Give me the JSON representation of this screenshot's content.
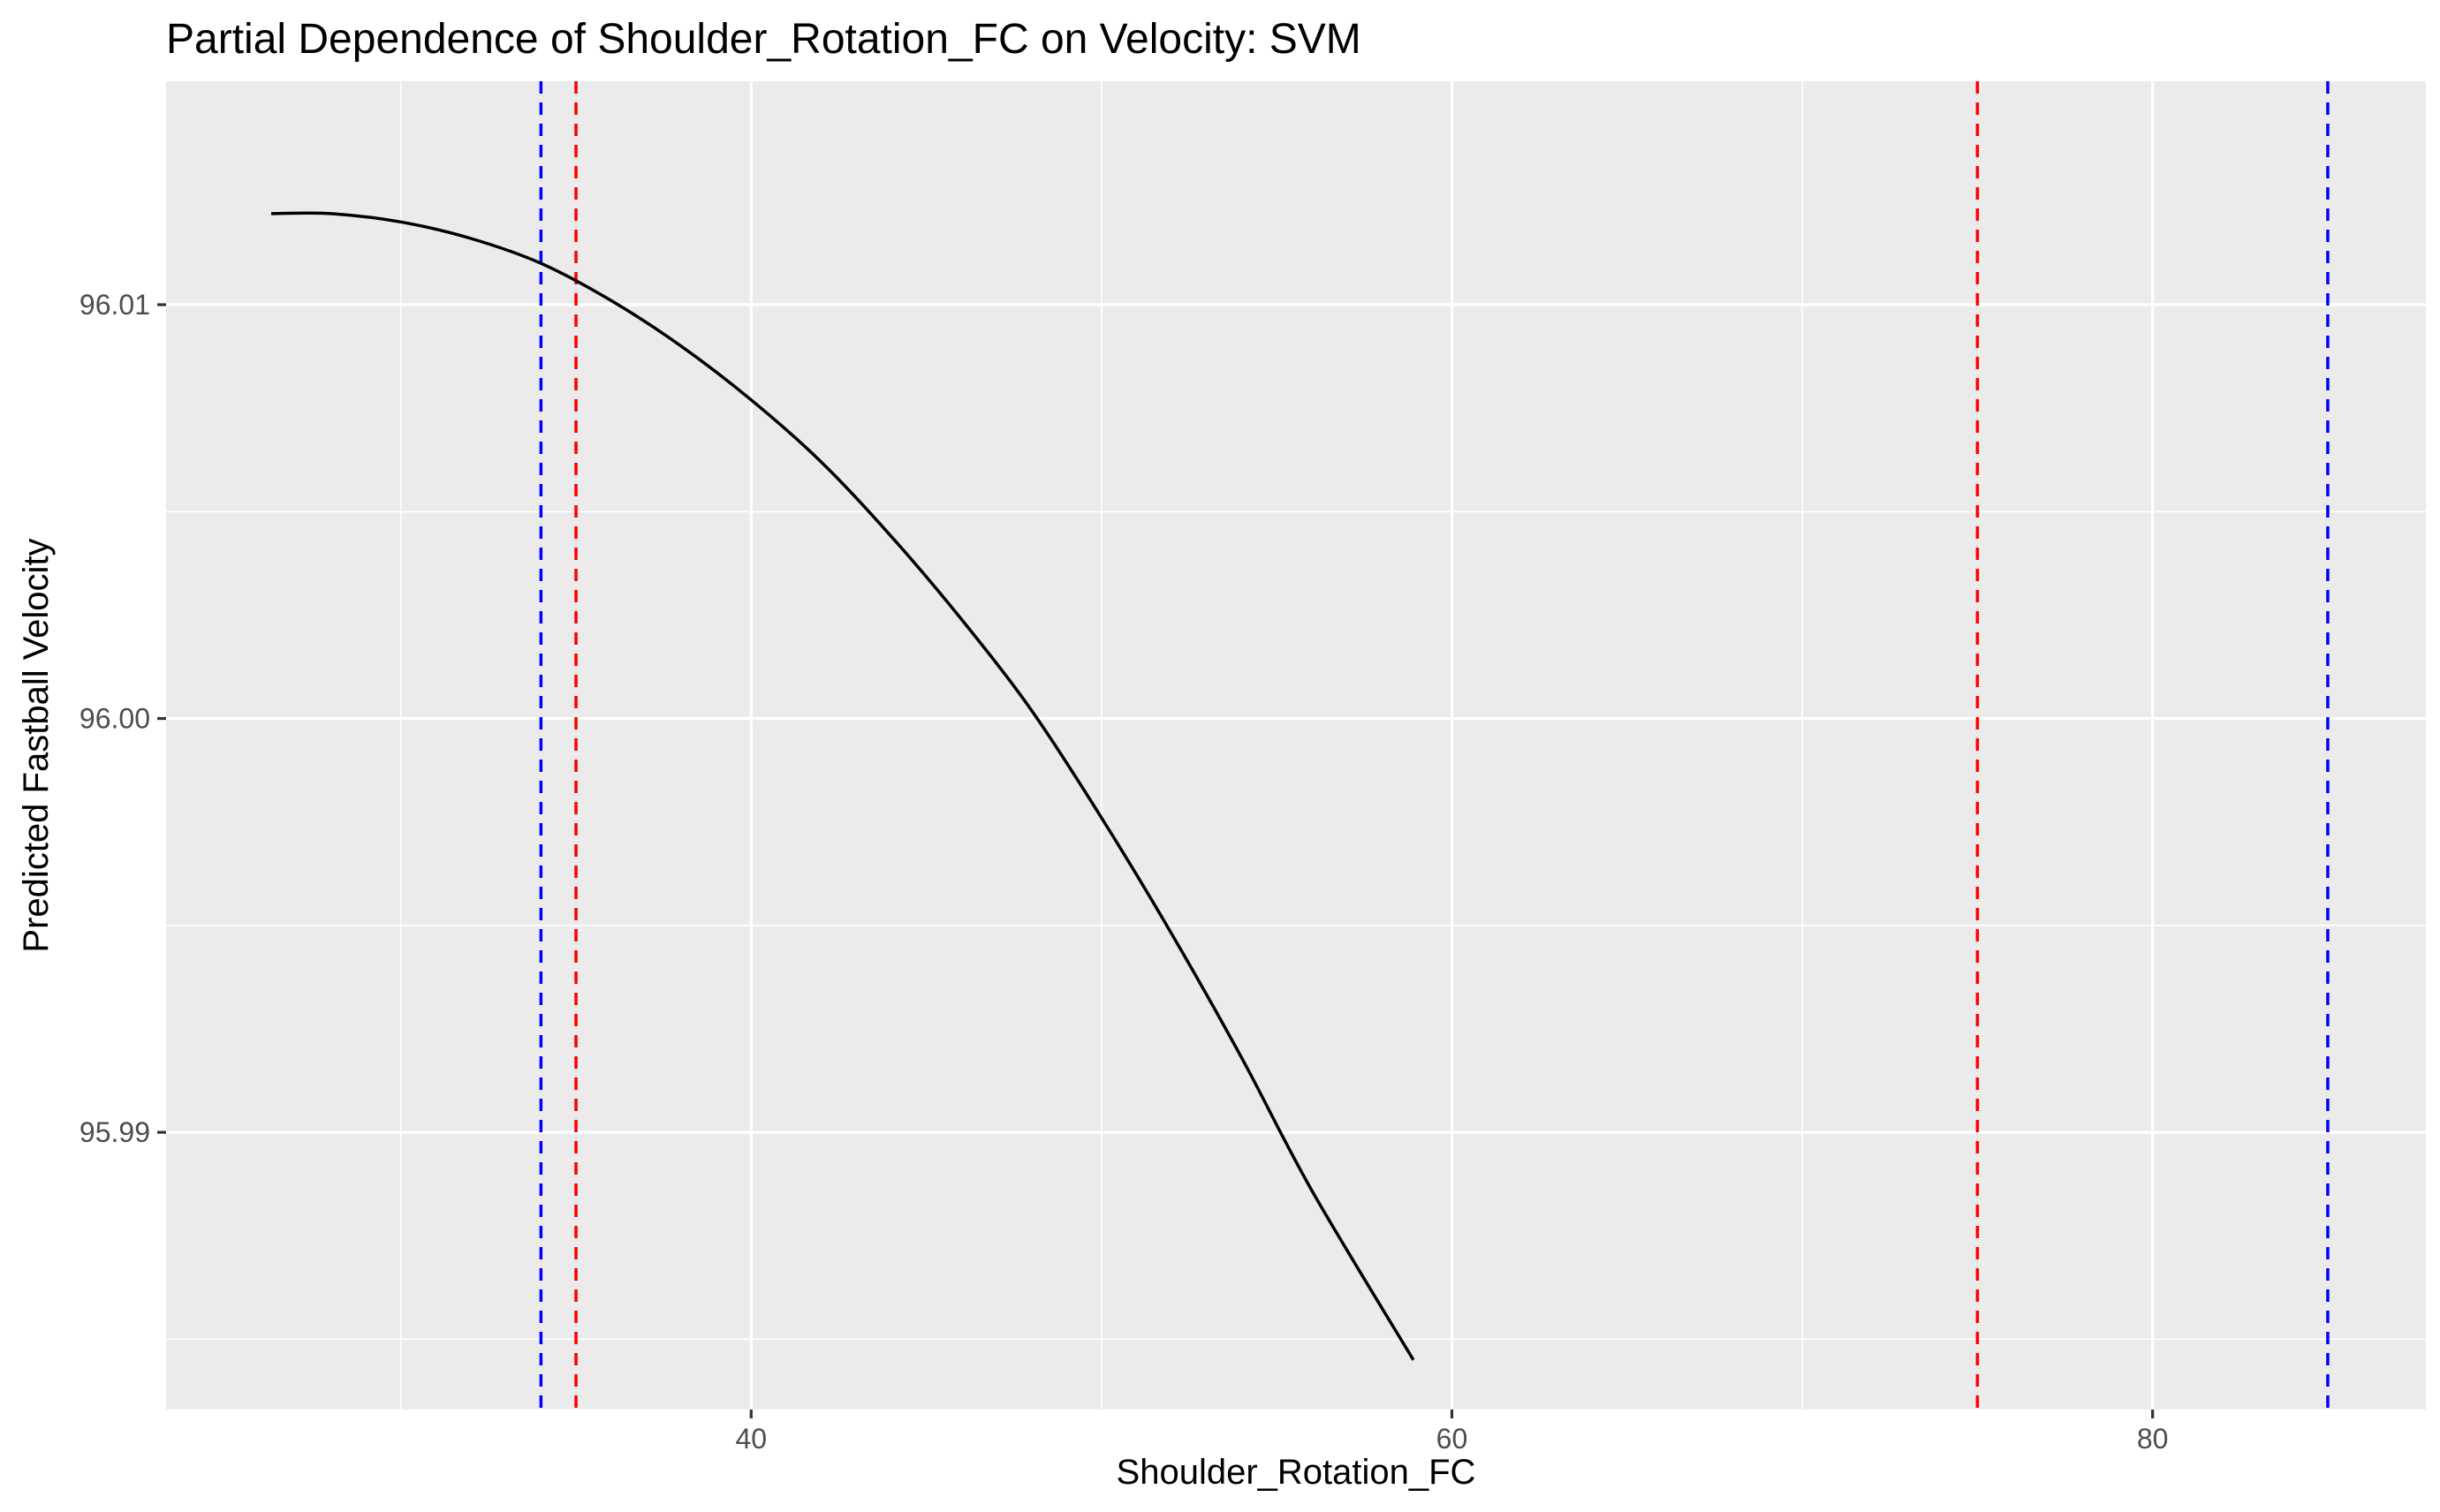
{
  "chart_data": {
    "type": "line",
    "title": "Partial Dependence of Shoulder_Rotation_FC on Velocity: SVM",
    "xlabel": "Shoulder_Rotation_FC",
    "ylabel": "Predicted Fastball Velocity",
    "xlim": [
      23.3,
      87.8
    ],
    "ylim": [
      95.9833,
      96.0154
    ],
    "x_ticks": [
      {
        "value": 40,
        "label": "40"
      },
      {
        "value": 60,
        "label": "60"
      },
      {
        "value": 80,
        "label": "80"
      }
    ],
    "x_minor": [
      30,
      50,
      70
    ],
    "y_ticks": [
      {
        "value": 95.99,
        "label": "95.99"
      },
      {
        "value": 96.0,
        "label": "96.00"
      },
      {
        "value": 96.01,
        "label": "96.01"
      }
    ],
    "y_minor": [
      95.985,
      95.995,
      96.005
    ],
    "grid": true,
    "legend": "none",
    "series": [
      {
        "color": "#000000",
        "x": [
          26.3,
          28.0,
          30.0,
          32.0,
          34.0,
          36.0,
          38.0,
          40.0,
          42.0,
          44.0,
          46.0,
          48.0,
          50.0,
          52.0,
          54.0,
          56.0,
          58.9
        ],
        "y": [
          96.0122,
          96.0122,
          96.012,
          96.0116,
          96.011,
          96.0101,
          96.009,
          96.0077,
          96.0062,
          96.0044,
          96.0024,
          96.0002,
          95.9976,
          95.9948,
          95.9918,
          95.9886,
          95.9845
        ]
      }
    ],
    "vlines": [
      {
        "x": 34.0,
        "color": "#0000ff",
        "linetype": "dashed"
      },
      {
        "x": 35.0,
        "color": "#ff0000",
        "linetype": "dashed"
      },
      {
        "x": 75.0,
        "color": "#ff0000",
        "linetype": "dashed"
      },
      {
        "x": 85.0,
        "color": "#0000ff",
        "linetype": "dashed"
      }
    ]
  }
}
